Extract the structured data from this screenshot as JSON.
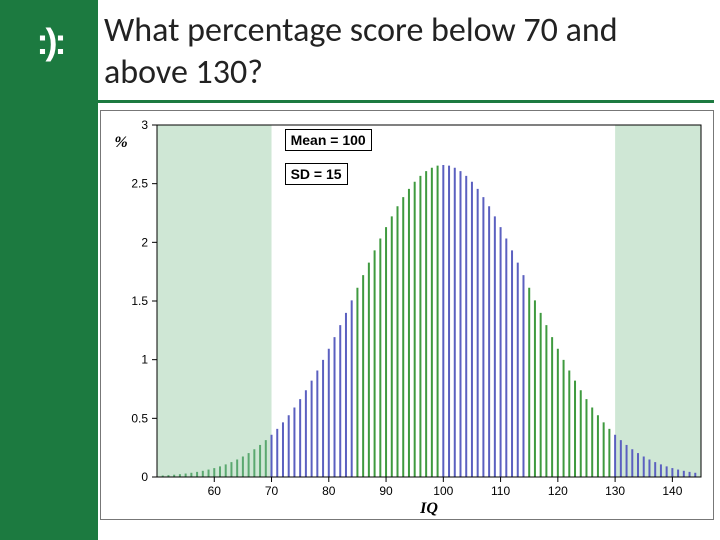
{
  "title": "What percentage score below 70 and above 130?",
  "logo_text": ":):",
  "annotations": {
    "mean": "Mean = 100",
    "sd": "SD = 15"
  },
  "chart": {
    "type": "histogram-normal",
    "xlabel": "IQ",
    "ylabel": "%",
    "xlim": [
      50,
      145
    ],
    "ylim": [
      0,
      3
    ],
    "xticks": [
      60,
      70,
      80,
      90,
      100,
      110,
      120,
      130,
      140
    ],
    "yticks": [
      0,
      0.5,
      1,
      1.5,
      2,
      2.5,
      3
    ],
    "distribution": {
      "mean": 100,
      "sd": 15,
      "bar_step": 1
    },
    "color_segments": [
      {
        "from": 50,
        "to": 70,
        "color": "#5aa86f"
      },
      {
        "from": 70,
        "to": 85,
        "color": "#5b60c0"
      },
      {
        "from": 85,
        "to": 100,
        "color": "#3f9a3f"
      },
      {
        "from": 100,
        "to": 115,
        "color": "#5b60c0"
      },
      {
        "from": 115,
        "to": 130,
        "color": "#3f9a3f"
      },
      {
        "from": 130,
        "to": 145,
        "color": "#5b60c0"
      }
    ],
    "shaded_regions": [
      {
        "from": 50,
        "to": 70,
        "fill": "#cfe7d5"
      },
      {
        "from": 130,
        "to": 145,
        "fill": "#cfe7d5"
      }
    ],
    "axis_color": "#000000",
    "plot_bg": "#ffffff",
    "plot_border": "#000000",
    "label_fontsize": 16,
    "tick_fontsize": 12
  },
  "colors": {
    "sidebar": "#1c7a40",
    "title_rule": "#1c7a40",
    "title_text": "#222222"
  }
}
